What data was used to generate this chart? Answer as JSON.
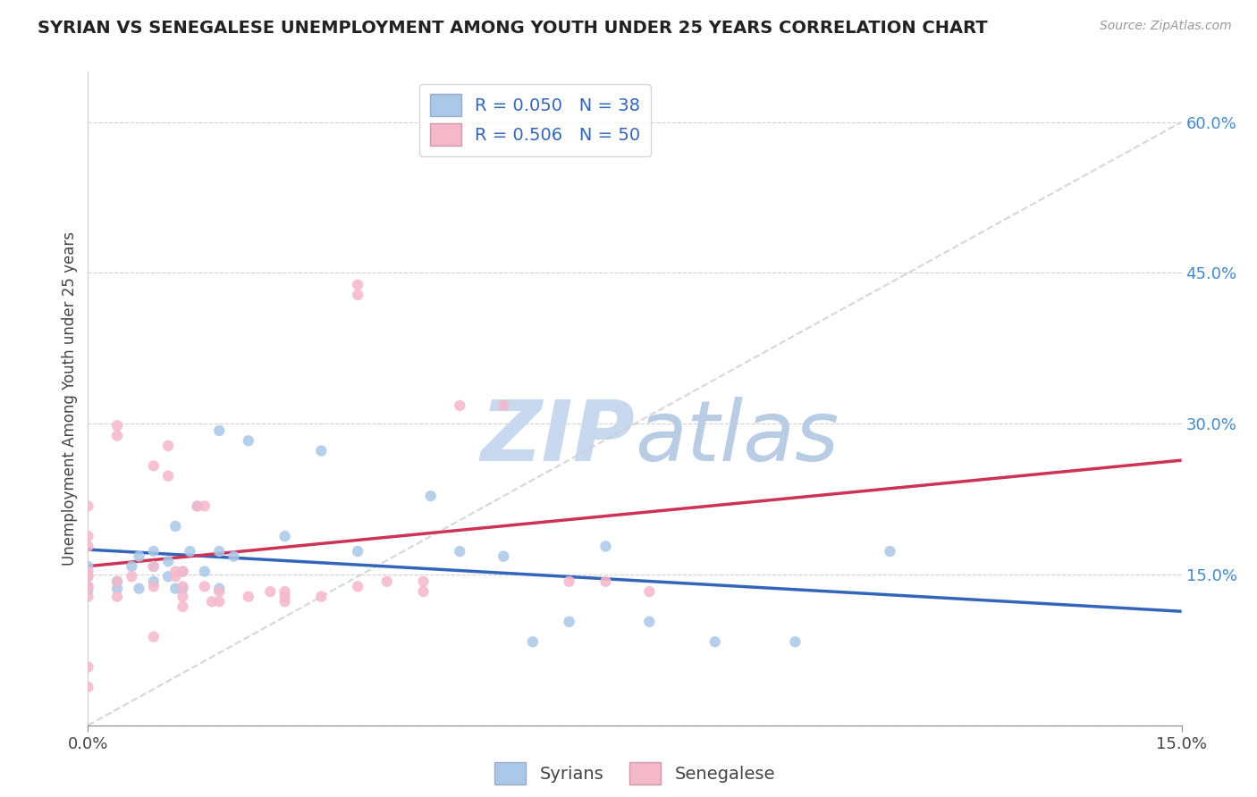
{
  "title": "SYRIAN VS SENEGALESE UNEMPLOYMENT AMONG YOUTH UNDER 25 YEARS CORRELATION CHART",
  "source": "Source: ZipAtlas.com",
  "ylabel": "Unemployment Among Youth under 25 years",
  "xlim": [
    0.0,
    0.15
  ],
  "ylim": [
    0.0,
    0.65
  ],
  "ytick_values": [
    0.0,
    0.15,
    0.3,
    0.45,
    0.6
  ],
  "ytick_labels": [
    "",
    "15.0%",
    "30.0%",
    "45.0%",
    "60.0%"
  ],
  "xtick_values": [
    0.0,
    0.15
  ],
  "xtick_labels": [
    "0.0%",
    "15.0%"
  ],
  "legend_syrian_R": "R = 0.050",
  "legend_syrian_N": "N = 38",
  "legend_senegalese_R": "R = 0.506",
  "legend_senegalese_N": "N = 50",
  "color_syrian": "#aac8e8",
  "color_senegalese": "#f5b8ca",
  "color_syrian_line": "#3366bb",
  "color_senegalese_line": "#cc3355",
  "color_trend_dashed": "#cccccc",
  "background_color": "#ffffff",
  "watermark_zip_color": "#c8d8ee",
  "watermark_atlas_color": "#b8cce4",
  "syrians_x": [
    0.0,
    0.0,
    0.0,
    0.004,
    0.004,
    0.006,
    0.007,
    0.007,
    0.009,
    0.009,
    0.009,
    0.011,
    0.011,
    0.012,
    0.012,
    0.013,
    0.013,
    0.014,
    0.015,
    0.016,
    0.018,
    0.018,
    0.018,
    0.02,
    0.022,
    0.027,
    0.032,
    0.037,
    0.047,
    0.051,
    0.057,
    0.061,
    0.066,
    0.071,
    0.077,
    0.086,
    0.097,
    0.11
  ],
  "syrians_y": [
    0.135,
    0.148,
    0.158,
    0.136,
    0.143,
    0.158,
    0.136,
    0.168,
    0.143,
    0.158,
    0.173,
    0.148,
    0.163,
    0.136,
    0.198,
    0.136,
    0.153,
    0.173,
    0.218,
    0.153,
    0.136,
    0.173,
    0.293,
    0.168,
    0.283,
    0.188,
    0.273,
    0.173,
    0.228,
    0.173,
    0.168,
    0.083,
    0.103,
    0.178,
    0.103,
    0.083,
    0.083,
    0.173
  ],
  "senegalese_x": [
    0.0,
    0.0,
    0.0,
    0.0,
    0.0,
    0.0,
    0.0,
    0.0,
    0.0,
    0.0,
    0.004,
    0.004,
    0.004,
    0.004,
    0.006,
    0.009,
    0.009,
    0.009,
    0.009,
    0.011,
    0.011,
    0.012,
    0.012,
    0.013,
    0.013,
    0.013,
    0.013,
    0.015,
    0.016,
    0.016,
    0.017,
    0.018,
    0.018,
    0.022,
    0.025,
    0.027,
    0.027,
    0.027,
    0.032,
    0.037,
    0.037,
    0.037,
    0.041,
    0.046,
    0.046,
    0.051,
    0.057,
    0.066,
    0.071,
    0.077
  ],
  "senegalese_y": [
    0.128,
    0.138,
    0.138,
    0.148,
    0.153,
    0.178,
    0.188,
    0.218,
    0.058,
    0.038,
    0.128,
    0.143,
    0.288,
    0.298,
    0.148,
    0.088,
    0.138,
    0.158,
    0.258,
    0.248,
    0.278,
    0.148,
    0.153,
    0.118,
    0.128,
    0.138,
    0.153,
    0.218,
    0.138,
    0.218,
    0.123,
    0.133,
    0.123,
    0.128,
    0.133,
    0.128,
    0.133,
    0.123,
    0.128,
    0.438,
    0.428,
    0.138,
    0.143,
    0.143,
    0.133,
    0.318,
    0.318,
    0.143,
    0.143,
    0.133
  ]
}
